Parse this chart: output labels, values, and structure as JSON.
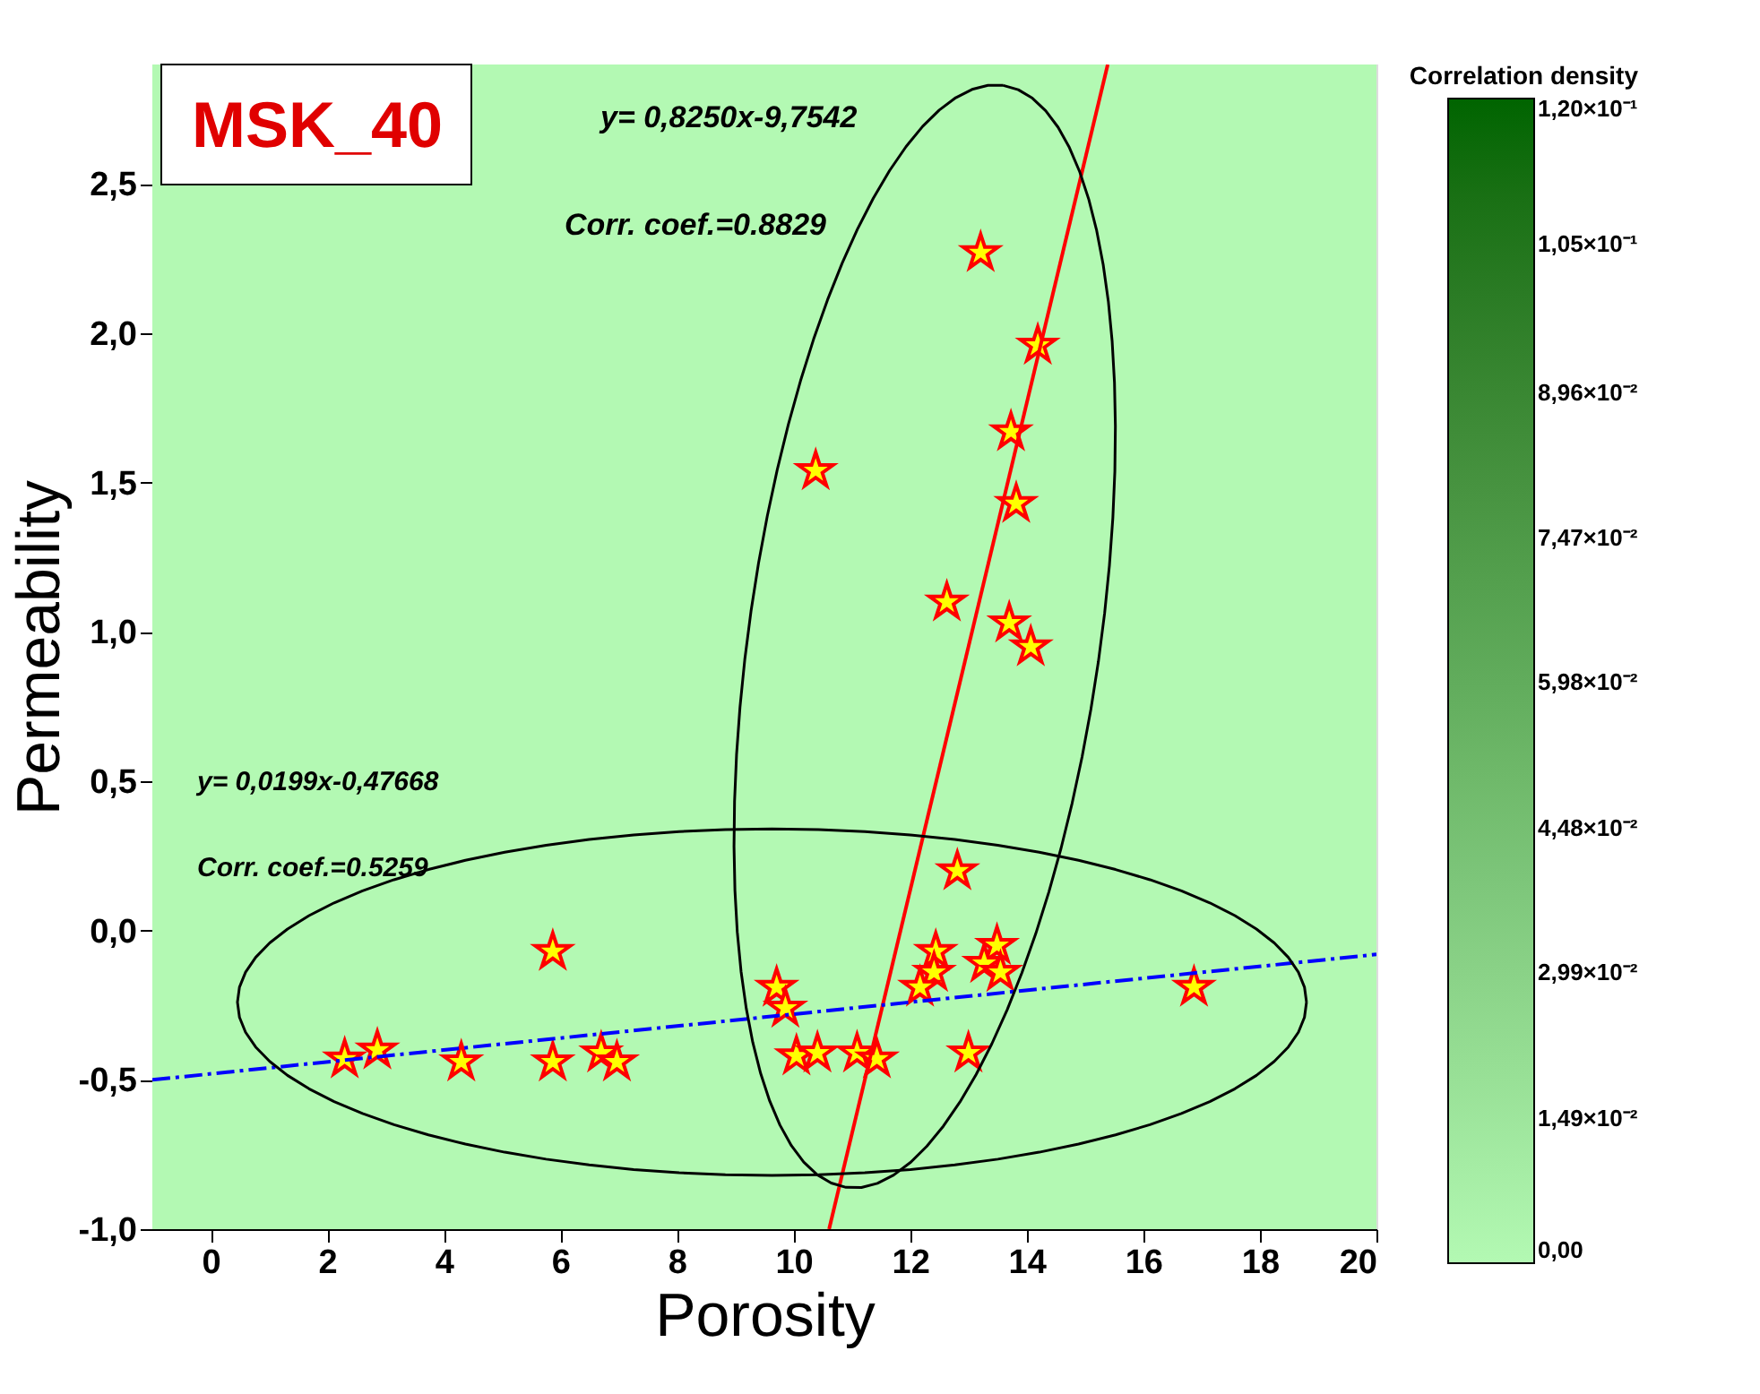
{
  "chart_data": {
    "type": "scatter",
    "title": "MSK_40",
    "xlabel": "Porosity",
    "ylabel": "Permeability",
    "clabel": "Correlation density",
    "xlim": [
      -1,
      20
    ],
    "ylim": [
      -1.0,
      2.9
    ],
    "xticks": [
      0,
      2,
      4,
      6,
      8,
      10,
      12,
      14,
      16,
      18,
      20
    ],
    "yticks": [
      {
        "value": -1.0,
        "label": "-1,0"
      },
      {
        "value": -0.5,
        "label": "-0,5"
      },
      {
        "value": 0.0,
        "label": "0,0"
      },
      {
        "value": 0.5,
        "label": "0,5"
      },
      {
        "value": 1.0,
        "label": "1,0"
      },
      {
        "value": 1.5,
        "label": "1,5"
      },
      {
        "value": 2.0,
        "label": "2,0"
      },
      {
        "value": 2.5,
        "label": "2,5"
      }
    ],
    "clim": [
      0,
      0.12
    ],
    "cticks": [
      {
        "value": 0,
        "label": "0,00"
      },
      {
        "value": 0.0149,
        "label": "1,49×10⁻²"
      },
      {
        "value": 0.0299,
        "label": "2,99×10⁻²"
      },
      {
        "value": 0.0448,
        "label": "4,48×10⁻²"
      },
      {
        "value": 0.0598,
        "label": "5,98×10⁻²"
      },
      {
        "value": 0.0747,
        "label": "7,47×10⁻²"
      },
      {
        "value": 0.0896,
        "label": "8,96×10⁻²"
      },
      {
        "value": 0.105,
        "label": "1,05×10⁻¹"
      },
      {
        "value": 0.12,
        "label": "1,20×10⁻¹"
      }
    ],
    "annotations": [
      "y= 0,8250x-9,7542",
      "Corr. coef.=0.8829",
      "y= 0,0199x-0,47668",
      "Corr. coef.=0.5259"
    ],
    "series": [
      {
        "color": "#ffff00",
        "marker": "star",
        "x": [
          13.21,
          14.19,
          13.73,
          10.38,
          13.82,
          12.63,
          13.7,
          14.07,
          12.81,
          5.87,
          2.3,
          2.86,
          4.3,
          5.87,
          6.7,
          6.97,
          9.71,
          9.86,
          10.05,
          10.41,
          11.09,
          11.43,
          13.0,
          12.44,
          12.41,
          12.17,
          13.49,
          13.27,
          13.55,
          16.87
        ],
        "values": [
          2.27,
          1.96,
          1.67,
          1.54,
          1.43,
          1.1,
          1.03,
          0.95,
          0.2,
          -0.07,
          -0.43,
          -0.4,
          -0.44,
          -0.44,
          -0.41,
          -0.44,
          -0.19,
          -0.26,
          -0.42,
          -0.41,
          -0.41,
          -0.43,
          -0.41,
          -0.07,
          -0.14,
          -0.19,
          -0.05,
          -0.11,
          -0.14,
          -0.19
        ]
      },
      {
        "type": "line",
        "color": "#ff0000",
        "line_style": "solid",
        "marker": "none",
        "x": [
          10.61,
          15.39
        ],
        "values": [
          -1.0,
          2.9
        ]
      },
      {
        "type": "line",
        "color": "#0000ff",
        "line_style": "dashed",
        "marker": "none",
        "x": [
          -1,
          20
        ],
        "values": [
          -0.5,
          -0.08
        ]
      }
    ]
  }
}
